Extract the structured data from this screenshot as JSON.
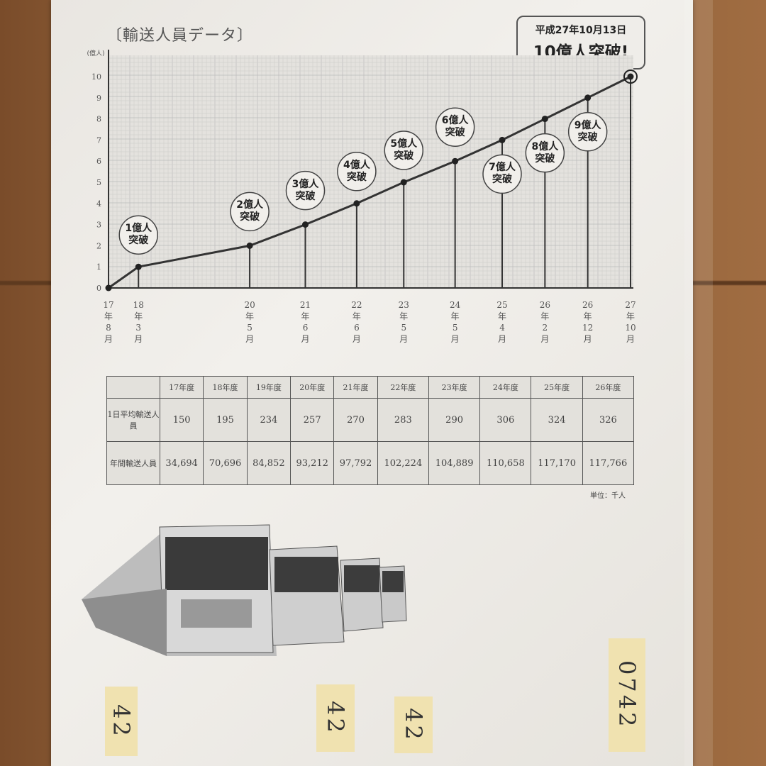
{
  "title": "〔輸送人員データ〕",
  "announcement": {
    "line1": "平成27年10月13日",
    "line2": "10億人突破!"
  },
  "chart_data": {
    "type": "line",
    "title": "〔輸送人員データ〕",
    "ylabel": "(億人)",
    "ylim": [
      0,
      10
    ],
    "yticks": [
      "0",
      "1",
      "2",
      "3",
      "4",
      "5",
      "6",
      "7",
      "8",
      "9",
      "10"
    ],
    "grid": true,
    "x": [
      {
        "year": 17,
        "month": 8,
        "label": [
          "17",
          "年",
          "8",
          "月"
        ]
      },
      {
        "year": 18,
        "month": 3,
        "label": [
          "18",
          "年",
          "3",
          "月"
        ]
      },
      {
        "year": 20,
        "month": 5,
        "label": [
          "20",
          "年",
          "5",
          "月"
        ]
      },
      {
        "year": 21,
        "month": 6,
        "label": [
          "21",
          "年",
          "6",
          "月"
        ]
      },
      {
        "year": 22,
        "month": 6,
        "label": [
          "22",
          "年",
          "6",
          "月"
        ]
      },
      {
        "year": 23,
        "month": 5,
        "label": [
          "23",
          "年",
          "5",
          "月"
        ]
      },
      {
        "year": 24,
        "month": 5,
        "label": [
          "24",
          "年",
          "5",
          "月"
        ]
      },
      {
        "year": 25,
        "month": 4,
        "label": [
          "25",
          "年",
          "4",
          "月"
        ]
      },
      {
        "year": 26,
        "month": 2,
        "label": [
          "26",
          "年",
          "2",
          "月"
        ]
      },
      {
        "year": 26,
        "month": 12,
        "label": [
          "26",
          "年",
          "12",
          "月"
        ]
      },
      {
        "year": 27,
        "month": 10,
        "label": [
          "27",
          "年",
          "10",
          "月"
        ]
      }
    ],
    "y": [
      0,
      1,
      2,
      3,
      4,
      5,
      6,
      7,
      8,
      9,
      10
    ],
    "annotations": [
      "",
      "1億人突破",
      "2億人突破",
      "3億人突破",
      "4億人突破",
      "5億人突破",
      "6億人突破",
      "7億人突破",
      "8億人突破",
      "9億人突破",
      ""
    ]
  },
  "table": {
    "headers": [
      "17年度",
      "18年度",
      "19年度",
      "20年度",
      "21年度",
      "22年度",
      "23年度",
      "24年度",
      "25年度",
      "26年度"
    ],
    "rows": [
      {
        "label": "1日平均輸送人員",
        "values": [
          "150",
          "195",
          "234",
          "257",
          "270",
          "283",
          "290",
          "306",
          "324",
          "326"
        ]
      },
      {
        "label": "年間輸送人員",
        "values": [
          "34,694",
          "70,696",
          "84,852",
          "93,212",
          "97,792",
          "102,224",
          "104,889",
          "110,658",
          "117,170",
          "117,766"
        ]
      }
    ],
    "unit": "単位：千人"
  },
  "tags": [
    "42",
    "42",
    "42",
    "0742"
  ]
}
